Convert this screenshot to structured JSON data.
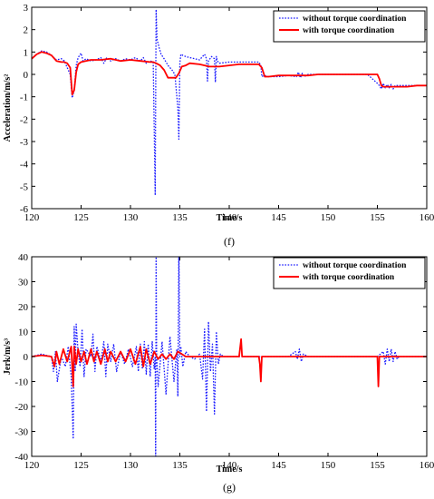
{
  "colors": {
    "blue": "#1a1aff",
    "red": "#ff0000",
    "axis": "#000000",
    "background": "#ffffff"
  },
  "chart_data": [
    {
      "type": "line",
      "panel_label": "(f)",
      "xlabel": "Time/s",
      "ylabel": "Acceleration/m/s²",
      "xlim": [
        120,
        160
      ],
      "ylim": [
        -6,
        3
      ],
      "xticks": [
        120,
        125,
        130,
        135,
        140,
        145,
        150,
        155,
        160
      ],
      "yticks": [
        -6,
        -5,
        -4,
        -3,
        -2,
        -1,
        0,
        1,
        2,
        3
      ],
      "grid": false,
      "legend": "top-right",
      "series": [
        {
          "name": "without torque coordination",
          "style": "dotted",
          "color": "#1a1aff",
          "x": [
            120,
            120.5,
            121,
            121.5,
            122,
            122.5,
            123,
            123.3,
            123.6,
            123.9,
            124.1,
            124.3,
            124.5,
            124.7,
            125,
            125.2,
            125.5,
            126,
            126.5,
            127,
            127.3,
            127.6,
            128,
            128.5,
            129,
            129.5,
            130,
            130.5,
            131,
            131.3,
            131.6,
            132,
            132.3,
            132.5,
            132.6,
            132.7,
            132.8,
            132.9,
            133.1,
            133.4,
            133.8,
            134.2,
            134.5,
            134.8,
            134.9,
            135,
            135.1,
            135.3,
            135.6,
            136,
            136.5,
            137,
            137.5,
            137.7,
            137.8,
            137.9,
            138.2,
            138.5,
            138.6,
            138.7,
            138.8,
            139,
            140,
            141,
            142,
            143,
            143.2,
            143.3,
            143.5,
            144,
            145,
            146,
            146.8,
            147,
            147.2,
            147.4,
            147.6,
            148,
            149,
            150,
            151,
            152,
            153,
            154,
            155,
            155.2,
            155.4,
            155.6,
            155.8,
            156,
            156.2,
            156.4,
            156.6,
            156.8,
            157,
            158,
            159,
            160
          ],
          "y": [
            0.7,
            0.9,
            1.05,
            1.0,
            0.85,
            0.65,
            0.7,
            0.6,
            0.3,
            0.0,
            -1.05,
            -0.7,
            0.4,
            0.75,
            0.95,
            0.6,
            0.7,
            0.6,
            0.65,
            0.75,
            0.5,
            0.75,
            0.6,
            0.7,
            0.6,
            0.7,
            0.65,
            0.75,
            0.6,
            0.75,
            0.5,
            0.6,
            0.55,
            -5.4,
            2.9,
            1.5,
            1.4,
            1.2,
            0.9,
            0.7,
            0.4,
            0.2,
            0.0,
            -1.5,
            -2.9,
            0.5,
            0.9,
            0.85,
            0.8,
            0.75,
            0.7,
            0.65,
            0.9,
            0.7,
            -0.3,
            0.6,
            0.8,
            0.7,
            -0.35,
            0.8,
            0.6,
            0.5,
            0.55,
            0.55,
            0.55,
            0.55,
            0.4,
            -0.1,
            -0.05,
            -0.1,
            -0.1,
            -0.05,
            -0.1,
            0.1,
            -0.15,
            0.05,
            -0.1,
            0.0,
            0.0,
            0.0,
            0.0,
            0.0,
            0.0,
            0.0,
            -0.4,
            -0.5,
            -0.65,
            -0.4,
            -0.6,
            -0.45,
            -0.6,
            -0.45,
            -0.65,
            -0.5,
            -0.5,
            -0.5,
            -0.5,
            -0.5
          ]
        },
        {
          "name": "with torque coordination",
          "style": "solid",
          "color": "#ff0000",
          "x": [
            120,
            120.5,
            121,
            121.5,
            122,
            122.5,
            123,
            123.3,
            123.6,
            123.9,
            124.1,
            124.3,
            124.5,
            124.7,
            125,
            126,
            127,
            128,
            129,
            130,
            131,
            132,
            132.3,
            132.6,
            133,
            133.4,
            133.8,
            134.2,
            134.6,
            134.9,
            135.2,
            135.6,
            136,
            137,
            138,
            139,
            140,
            141,
            142,
            143,
            143.3,
            143.6,
            144,
            145,
            146,
            147,
            148,
            149,
            150,
            151,
            152,
            153,
            154,
            155,
            155.2,
            155.4,
            155.6,
            156,
            157,
            158,
            159,
            160
          ],
          "y": [
            0.7,
            0.9,
            1.0,
            0.95,
            0.85,
            0.6,
            0.55,
            0.55,
            0.5,
            0.3,
            -0.9,
            -0.7,
            0.1,
            0.45,
            0.55,
            0.65,
            0.65,
            0.7,
            0.6,
            0.65,
            0.6,
            0.55,
            0.55,
            0.5,
            0.4,
            0.2,
            -0.15,
            -0.15,
            -0.15,
            0.05,
            0.35,
            0.4,
            0.5,
            0.45,
            0.35,
            0.35,
            0.4,
            0.45,
            0.45,
            0.45,
            0.3,
            -0.1,
            -0.1,
            -0.05,
            -0.05,
            -0.05,
            -0.05,
            0.0,
            0.0,
            0.0,
            0.0,
            0.0,
            0.0,
            0.0,
            -0.2,
            -0.5,
            -0.55,
            -0.55,
            -0.55,
            -0.55,
            -0.5,
            -0.5
          ]
        }
      ]
    },
    {
      "type": "line",
      "panel_label": "(g)",
      "xlabel": "Time/s",
      "ylabel": "Jerk/m/s³",
      "xlim": [
        120,
        160
      ],
      "ylim": [
        -40,
        40
      ],
      "xticks": [
        120,
        125,
        130,
        135,
        140,
        145,
        150,
        155,
        160
      ],
      "yticks": [
        -40,
        -30,
        -20,
        -10,
        0,
        10,
        20,
        30,
        40
      ],
      "grid": false,
      "legend": "top-right",
      "series": [
        {
          "name": "without torque coordination",
          "style": "dotted",
          "color": "#1a1aff",
          "x": [
            120,
            121,
            122,
            122.2,
            122.4,
            122.6,
            123,
            123.4,
            123.7,
            124,
            124.2,
            124.3,
            124.4,
            124.5,
            124.7,
            124.9,
            125.1,
            125.3,
            125.5,
            126,
            126.2,
            126.4,
            126.6,
            127,
            127.3,
            127.5,
            127.7,
            128,
            128.3,
            128.6,
            129,
            129.4,
            129.8,
            130.2,
            130.6,
            130.8,
            131,
            131.2,
            131.4,
            131.6,
            131.8,
            132,
            132.2,
            132.4,
            132.5,
            132.55,
            132.6,
            132.65,
            132.8,
            133.2,
            133.6,
            134,
            134.4,
            134.7,
            134.8,
            134.9,
            135,
            135.1,
            135.3,
            135.6,
            136,
            136.5,
            137,
            137.3,
            137.5,
            137.7,
            137.9,
            138.1,
            138.3,
            138.5,
            138.7,
            138.9,
            139.1,
            139.4,
            140,
            141,
            142,
            143,
            144,
            145,
            146,
            146.7,
            146.9,
            147.1,
            147.3,
            147.5,
            148,
            149,
            150,
            151,
            152,
            153,
            154,
            155,
            155.6,
            155.8,
            156,
            156.2,
            156.4,
            156.6,
            156.8,
            157,
            157.2,
            158,
            159,
            160
          ],
          "y": [
            0,
            1,
            0,
            -6,
            2,
            -10,
            0,
            -4,
            4,
            -8,
            -33,
            12,
            -6,
            13,
            2,
            -4,
            11,
            -8,
            3,
            0,
            9,
            -6,
            4,
            -2,
            6,
            -8,
            5,
            -2,
            5,
            -6,
            2,
            -3,
            3,
            -4,
            4,
            -6,
            5,
            -5,
            6,
            -7,
            5,
            -8,
            6,
            -5,
            0,
            -44,
            44,
            0,
            -12,
            6,
            -15,
            8,
            -10,
            3,
            -16,
            44,
            0,
            4,
            -4,
            2,
            0,
            -1,
            1,
            -9,
            11,
            -22,
            14,
            -6,
            5,
            -23,
            10,
            -3,
            1,
            0,
            0,
            0,
            0,
            0,
            0,
            0,
            0,
            2,
            -1,
            3,
            -2,
            1,
            0,
            0,
            0,
            0,
            0,
            0,
            0,
            0,
            2,
            -3,
            3,
            -2,
            3,
            -2,
            2,
            -1,
            0,
            0,
            0,
            0
          ]
        },
        {
          "name": "with torque coordination",
          "style": "solid",
          "color": "#ff0000",
          "x": [
            120,
            121,
            122,
            122.3,
            122.5,
            122.8,
            123.2,
            123.6,
            124,
            124.2,
            124.3,
            124.5,
            124.7,
            125,
            125.3,
            125.6,
            126,
            126.3,
            126.6,
            127,
            127.4,
            127.7,
            128,
            128.5,
            129,
            129.5,
            130,
            130.5,
            131,
            131.3,
            131.6,
            132,
            132.4,
            132.8,
            133.2,
            133.6,
            134,
            134.4,
            134.8,
            135.2,
            135.6,
            136,
            137,
            138,
            139,
            140,
            141,
            141.2,
            141.3,
            141.5,
            142,
            143,
            143.1,
            143.2,
            143.3,
            143.5,
            144,
            145,
            146,
            147,
            148,
            149,
            150,
            151,
            152,
            153,
            154,
            155,
            155.1,
            155.2,
            155.3,
            155.5,
            156,
            157,
            158,
            159,
            160
          ],
          "y": [
            0,
            0.5,
            0,
            -4,
            2,
            -3,
            3,
            -2,
            4,
            -12,
            4,
            -3,
            3,
            -2,
            2,
            -3,
            3,
            -2,
            2,
            -3,
            3,
            -2,
            2,
            -2,
            2,
            -2,
            3,
            -3,
            4,
            -4,
            3,
            -3,
            2,
            -1,
            1,
            -1,
            1,
            -1,
            2,
            1,
            0,
            0,
            0,
            0,
            0,
            0,
            0,
            7,
            0,
            0,
            0,
            0,
            -3,
            -10,
            0,
            0,
            0,
            0,
            0,
            0,
            0,
            0,
            0,
            0,
            0,
            0,
            0,
            0,
            -12,
            0,
            0,
            0,
            0,
            0,
            0,
            0,
            0
          ]
        }
      ]
    }
  ]
}
